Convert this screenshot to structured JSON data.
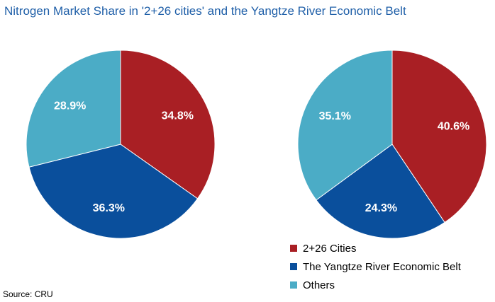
{
  "title": "Nitrogen Market Share in '2+26 cities' and the Yangtze River Economic Belt",
  "source": "Source: CRU",
  "chart_data": [
    {
      "type": "pie",
      "categories": [
        "2+26 Cities",
        "The Yangtze River Economic Belt",
        "Others"
      ],
      "values": [
        34.8,
        36.3,
        28.9
      ],
      "labels": [
        "34.8%",
        "36.3%",
        "28.9%"
      ],
      "colors": [
        "#a91f24",
        "#0a4f9c",
        "#4bacc6"
      ]
    },
    {
      "type": "pie",
      "categories": [
        "2+26 Cities",
        "The Yangtze River Economic Belt",
        "Others"
      ],
      "values": [
        40.6,
        24.3,
        35.1
      ],
      "labels": [
        "40.6%",
        "24.3%",
        "35.1%"
      ],
      "colors": [
        "#a91f24",
        "#0a4f9c",
        "#4bacc6"
      ]
    }
  ],
  "legend": {
    "placement": "bottom-right",
    "items": [
      {
        "label": "2+26 Cities",
        "color": "#a91f24"
      },
      {
        "label": "The Yangtze River Economic Belt",
        "color": "#0a4f9c"
      },
      {
        "label": "Others",
        "color": "#4bacc6"
      }
    ]
  }
}
